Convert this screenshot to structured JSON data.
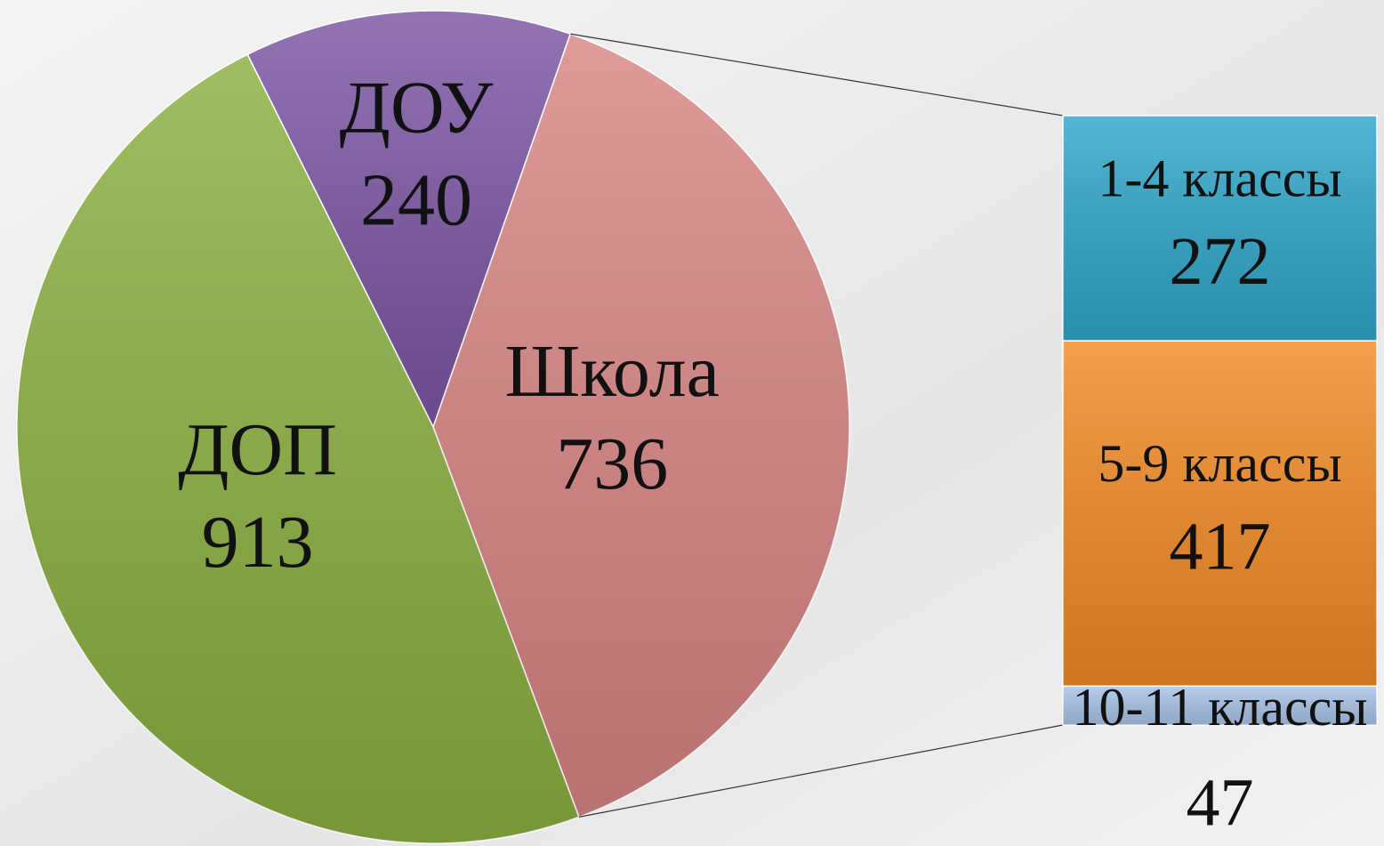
{
  "chart_data": {
    "type": "pie",
    "categories": [
      "ДОУ",
      "Школа",
      "ДОП"
    ],
    "values": [
      240,
      736,
      913
    ],
    "colors": [
      "#7b56a3",
      "#d98484",
      "#8bb040"
    ],
    "breakdown": {
      "categories": [
        "1-4 классы",
        "5-9 классы",
        "10-11 классы"
      ],
      "values": [
        272,
        417,
        47
      ],
      "colors": [
        "#2ea6c8",
        "#f18a25",
        "#a9c3e8"
      ]
    }
  }
}
